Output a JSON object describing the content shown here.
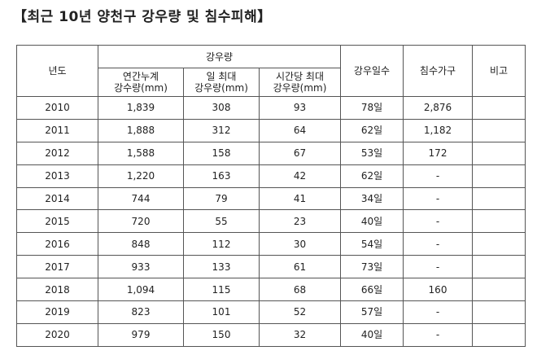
{
  "header": {
    "title": "【최근 10년 양천구 강우량 및 침수피해】"
  },
  "table": {
    "headers": {
      "year": "년도",
      "rainfall": "강우량",
      "rain_days": "강우일수",
      "flooded": "침수가구",
      "note": "비고",
      "sub": [
        [
          "연간누계",
          "강수량(mm)"
        ],
        [
          "일 최대",
          "강우량(mm)"
        ],
        [
          "시간당 최대",
          "강우량(mm)"
        ]
      ]
    },
    "rows": [
      [
        "2010",
        "1,839",
        "308",
        "93",
        "78일",
        "2,876"
      ],
      [
        "2011",
        "1,888",
        "312",
        "64",
        "62일",
        "1,182"
      ],
      [
        "2012",
        "1,588",
        "158",
        "67",
        "53일",
        "172"
      ],
      [
        "2013",
        "1,220",
        "163",
        "42",
        "62일",
        "-"
      ],
      [
        "2014",
        "744",
        "79",
        "41",
        "34일",
        "-"
      ],
      [
        "2015",
        "720",
        "55",
        "23",
        "40일",
        "-"
      ],
      [
        "2016",
        "848",
        "112",
        "30",
        "54일",
        "-"
      ],
      [
        "2017",
        "933",
        "133",
        "61",
        "73일",
        "-"
      ],
      [
        "2018",
        "1,094",
        "115",
        "68",
        "66일",
        "160"
      ],
      [
        "2019",
        "823",
        "101",
        "52",
        "57일",
        "-"
      ],
      [
        "2020",
        "979",
        "150",
        "32",
        "40일",
        "-"
      ]
    ]
  }
}
